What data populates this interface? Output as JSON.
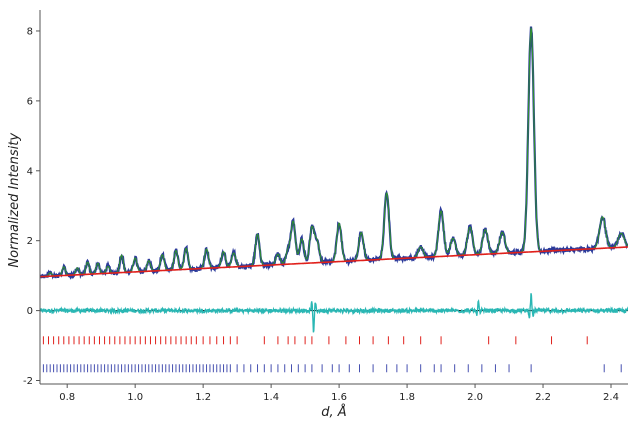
{
  "chart_data": {
    "type": "line",
    "title": "",
    "xlabel": "d, Å",
    "ylabel": "Normalized Intensity",
    "xlim": [
      0.72,
      2.45
    ],
    "ylim": [
      -2.1,
      8.6
    ],
    "grid": false,
    "legend": "none",
    "xticks": [
      "0.8",
      "1.0",
      "1.2",
      "1.4",
      "1.6",
      "1.8",
      "2.0",
      "2.2",
      "2.4"
    ],
    "yticks": [
      "-2",
      "0",
      "2",
      "4",
      "6",
      "8"
    ],
    "background": {
      "start": 0.97,
      "end": 1.82
    },
    "peaks": [
      {
        "d": 0.75,
        "h": 0.1
      },
      {
        "d": 0.79,
        "h": 0.25
      },
      {
        "d": 0.83,
        "h": 0.2
      },
      {
        "d": 0.86,
        "h": 0.35
      },
      {
        "d": 0.89,
        "h": 0.3
      },
      {
        "d": 0.92,
        "h": 0.2
      },
      {
        "d": 0.96,
        "h": 0.5
      },
      {
        "d": 1.0,
        "h": 0.4
      },
      {
        "d": 1.04,
        "h": 0.3
      },
      {
        "d": 1.08,
        "h": 0.45
      },
      {
        "d": 1.12,
        "h": 0.55
      },
      {
        "d": 1.15,
        "h": 0.6
      },
      {
        "d": 1.21,
        "h": 0.55
      },
      {
        "d": 1.26,
        "h": 0.45
      },
      {
        "d": 1.29,
        "h": 0.4
      },
      {
        "d": 1.36,
        "h": 0.9
      },
      {
        "d": 1.42,
        "h": 0.3
      },
      {
        "d": 1.45,
        "h": 0.4
      },
      {
        "d": 1.465,
        "h": 1.2
      },
      {
        "d": 1.49,
        "h": 0.7
      },
      {
        "d": 1.52,
        "h": 1.0
      },
      {
        "d": 1.535,
        "h": 0.6
      },
      {
        "d": 1.6,
        "h": 1.1
      },
      {
        "d": 1.665,
        "h": 0.8
      },
      {
        "d": 1.74,
        "h": 1.9
      },
      {
        "d": 1.84,
        "h": 0.3
      },
      {
        "d": 1.9,
        "h": 1.3
      },
      {
        "d": 1.935,
        "h": 0.5
      },
      {
        "d": 1.985,
        "h": 0.8
      },
      {
        "d": 2.03,
        "h": 0.7
      },
      {
        "d": 2.08,
        "h": 0.6
      },
      {
        "d": 2.165,
        "h": 6.4
      },
      {
        "d": 2.375,
        "h": 0.9
      },
      {
        "d": 2.43,
        "h": 0.4
      }
    ],
    "series": [
      {
        "values_ref": "observed",
        "color": "#2b3a9a"
      },
      {
        "values_ref": "calculated",
        "color": "#2f8f2f"
      },
      {
        "values_ref": "background",
        "color": "#e0201b"
      },
      {
        "values_ref": "difference",
        "color": "#2ab7b4"
      }
    ],
    "difference": {
      "offset": 0,
      "features": [
        {
          "d": 1.525,
          "amp": -0.6
        },
        {
          "d": 2.01,
          "amp": 0.25
        },
        {
          "d": 2.165,
          "amp": 0.45
        }
      ]
    },
    "reflection_rows": [
      {
        "y": -0.85,
        "color": "#e0201b",
        "d": [
          0.73,
          0.745,
          0.76,
          0.775,
          0.79,
          0.805,
          0.82,
          0.835,
          0.85,
          0.865,
          0.88,
          0.895,
          0.91,
          0.925,
          0.94,
          0.955,
          0.97,
          0.985,
          1.0,
          1.015,
          1.03,
          1.045,
          1.06,
          1.075,
          1.09,
          1.105,
          1.12,
          1.135,
          1.15,
          1.165,
          1.18,
          1.2,
          1.22,
          1.24,
          1.26,
          1.28,
          1.3,
          1.38,
          1.42,
          1.45,
          1.47,
          1.5,
          1.52,
          1.57,
          1.62,
          1.66,
          1.7,
          1.745,
          1.79,
          1.84,
          1.9,
          2.04,
          2.12,
          2.225,
          2.33
        ]
      },
      {
        "y": -1.65,
        "color": "#4650b0",
        "d": [
          0.73,
          0.74,
          0.75,
          0.76,
          0.77,
          0.78,
          0.79,
          0.8,
          0.81,
          0.82,
          0.83,
          0.84,
          0.85,
          0.86,
          0.87,
          0.88,
          0.89,
          0.9,
          0.91,
          0.92,
          0.93,
          0.94,
          0.95,
          0.96,
          0.97,
          0.98,
          0.99,
          1.0,
          1.01,
          1.02,
          1.03,
          1.04,
          1.05,
          1.06,
          1.07,
          1.08,
          1.09,
          1.1,
          1.11,
          1.12,
          1.13,
          1.14,
          1.15,
          1.16,
          1.17,
          1.18,
          1.19,
          1.2,
          1.21,
          1.22,
          1.23,
          1.24,
          1.25,
          1.26,
          1.27,
          1.28,
          1.3,
          1.32,
          1.34,
          1.36,
          1.38,
          1.4,
          1.42,
          1.44,
          1.46,
          1.48,
          1.5,
          1.52,
          1.55,
          1.58,
          1.6,
          1.63,
          1.66,
          1.7,
          1.74,
          1.77,
          1.8,
          1.84,
          1.88,
          1.9,
          1.94,
          1.98,
          2.02,
          2.06,
          2.1,
          2.165,
          2.38,
          2.43
        ]
      }
    ]
  }
}
